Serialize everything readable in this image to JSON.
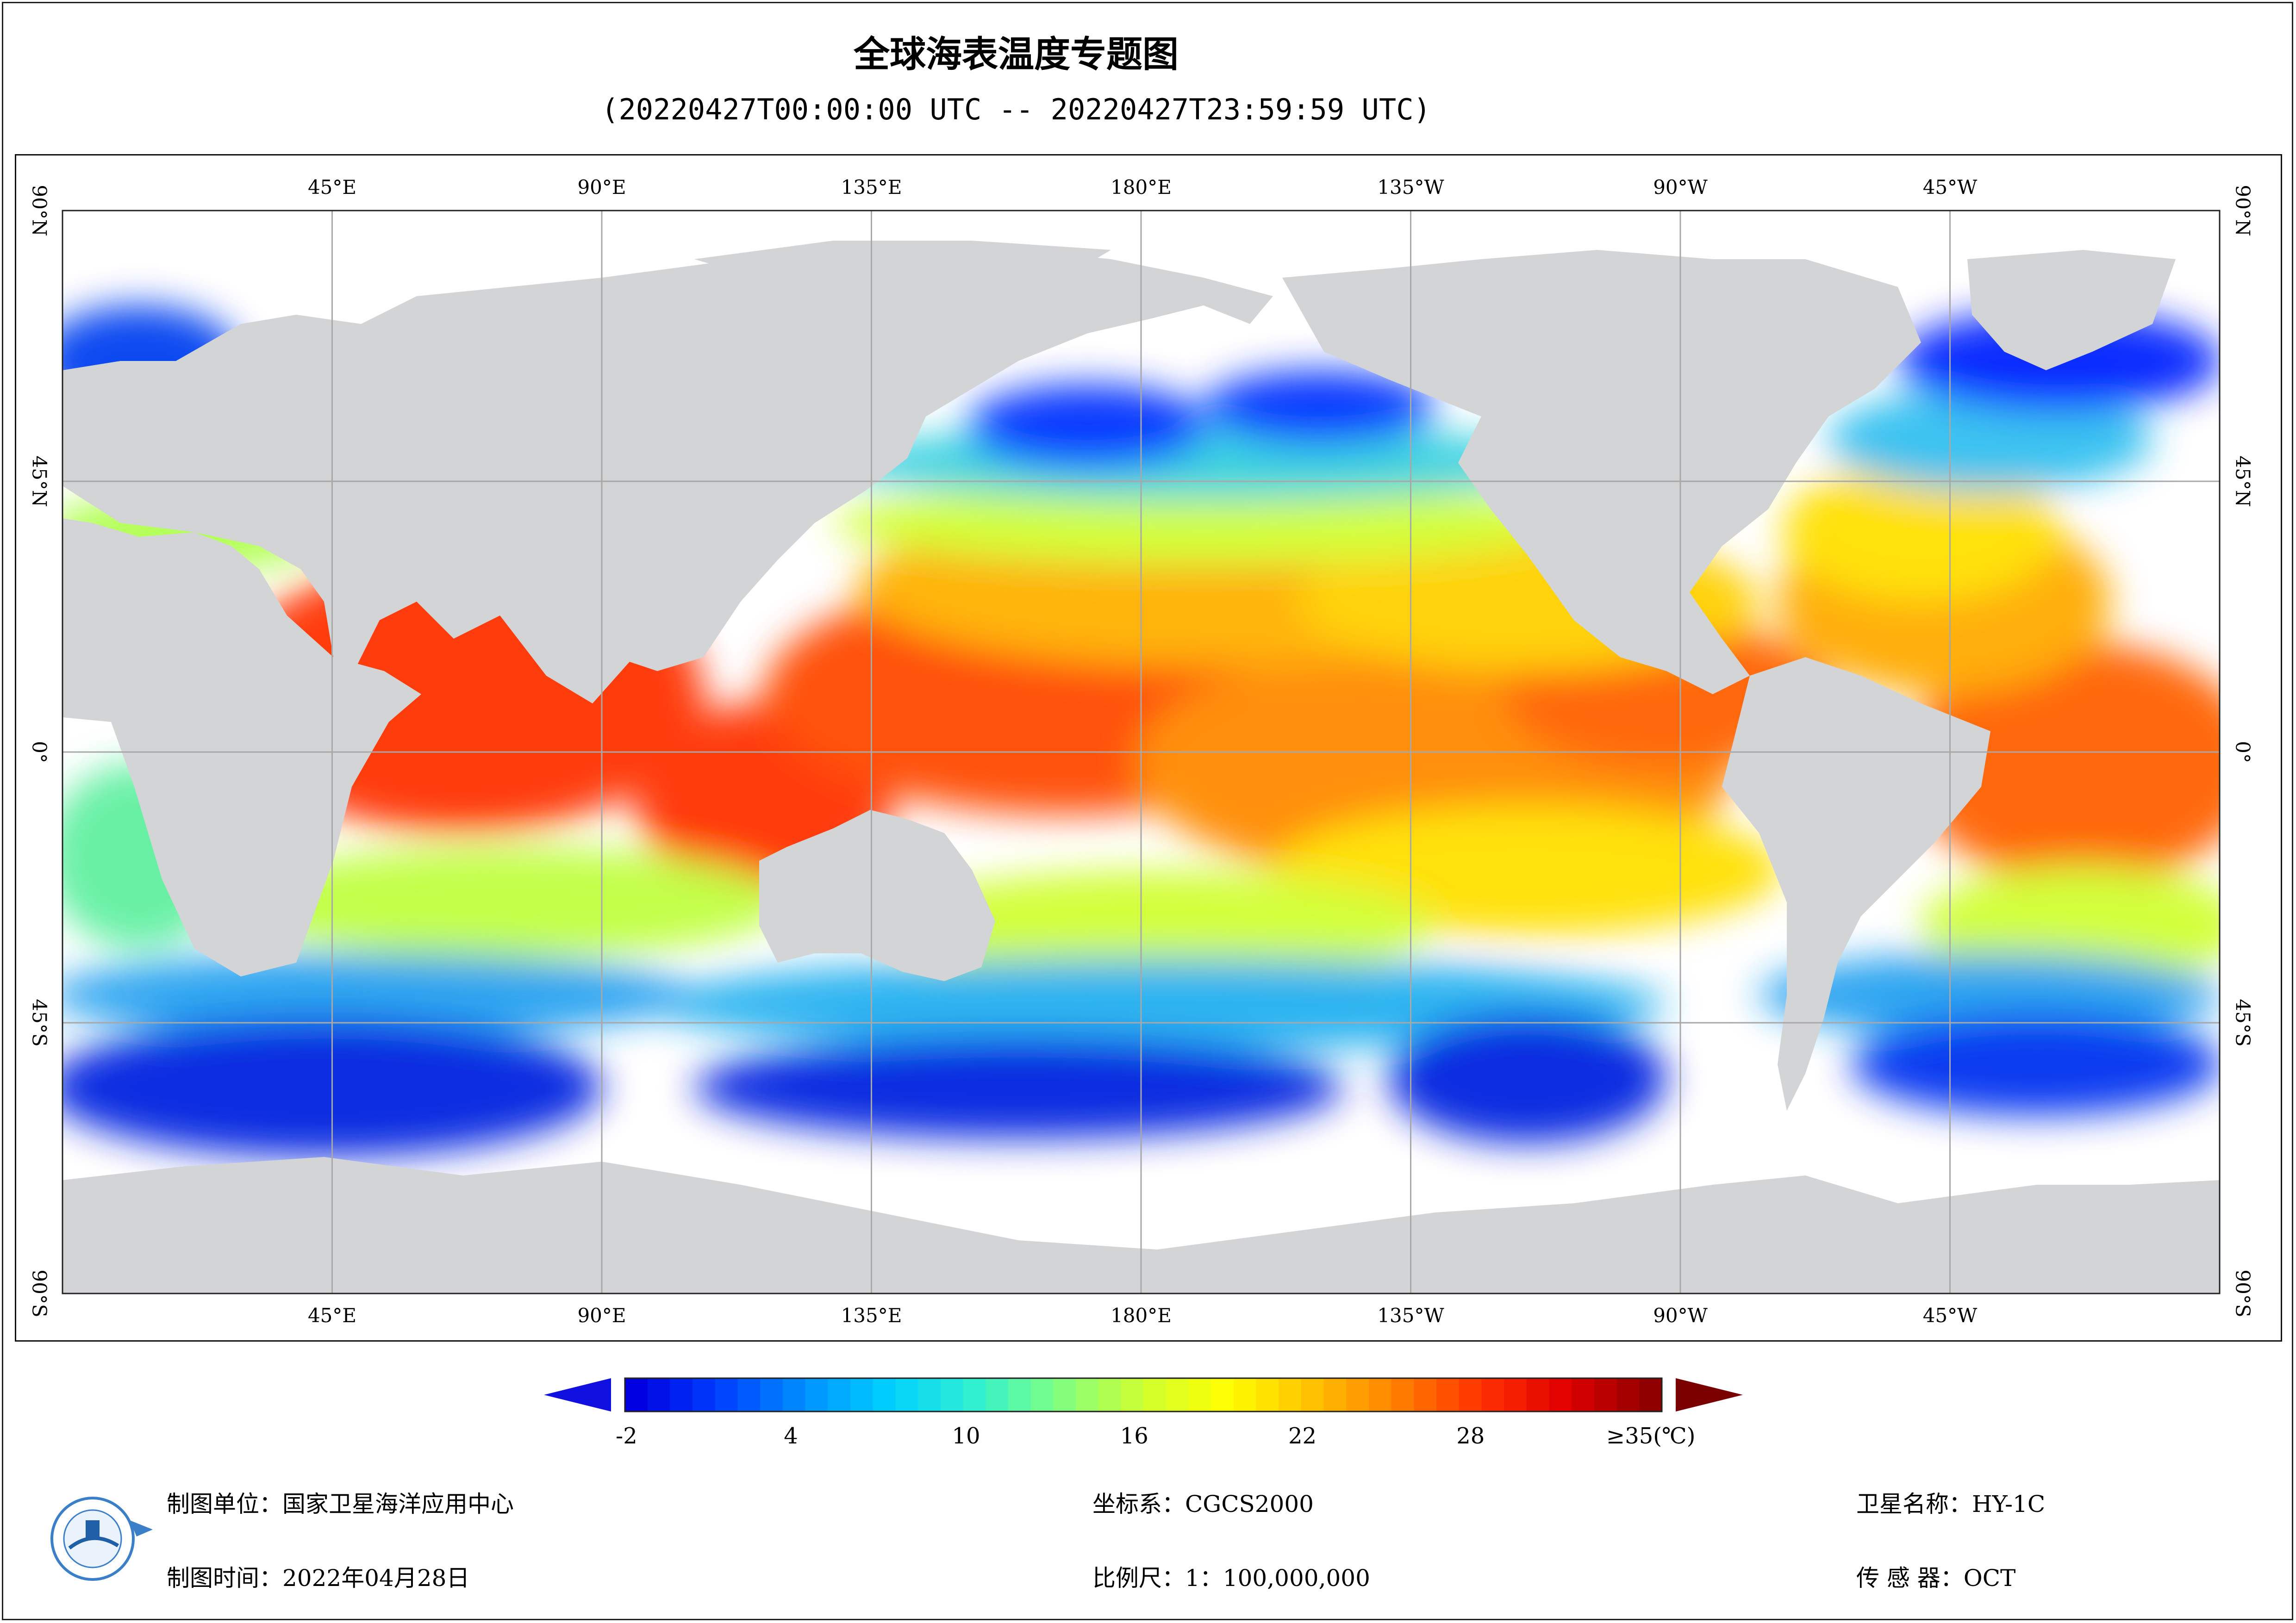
{
  "title": "全球海表温度专题图",
  "subtitle": "(20220427T00:00:00 UTC -- 20220427T23:59:59 UTC)",
  "map": {
    "top_lon_labels": [
      "45°E",
      "90°E",
      "135°E",
      "180°E",
      "135°W",
      "90°W",
      "45°W"
    ],
    "bottom_lon_labels": [
      "45°E",
      "90°E",
      "135°E",
      "180°E",
      "135°W",
      "90°W",
      "45°W"
    ],
    "left_lat_labels": [
      "90°N",
      "45°N",
      "0°",
      "45°S",
      "90°S"
    ],
    "right_lat_labels": [
      "90°N",
      "45°N",
      "0°",
      "45°S",
      "90°S"
    ],
    "colors": {
      "land": "#d3d4d6",
      "no_data": "#ffffff",
      "grid": "#a8a8a8"
    }
  },
  "colorbar": {
    "labels": [
      "-2",
      "4",
      "10",
      "16",
      "22",
      "28",
      "≥35(℃)"
    ],
    "min": -2,
    "max": 35,
    "palette": [
      "#0000e0",
      "#0040ff",
      "#0090ff",
      "#00d0ff",
      "#30f0d0",
      "#80ff80",
      "#d0ff30",
      "#ffff00",
      "#ffc000",
      "#ff8000",
      "#ff3000",
      "#e00000",
      "#900000"
    ],
    "under_color": "#1010e0",
    "over_color": "#7a0000"
  },
  "footer": {
    "org_label": "制图单位：国家卫星海洋应用中心",
    "time_label": "制图时间：2022年04月28日",
    "crs_label": "坐标系：CGCS2000",
    "scale_label": "比例尺：1：100,000,000",
    "satellite_label": "卫星名称：HY-1C",
    "sensor_label": "传 感 器：OCT"
  }
}
